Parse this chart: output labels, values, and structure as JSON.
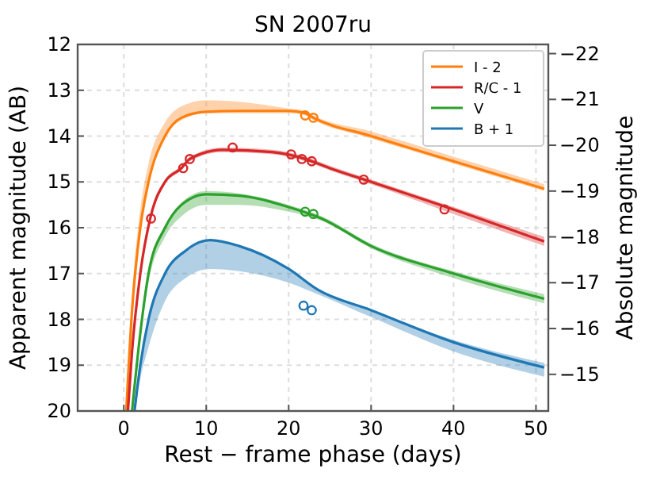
{
  "chart_data": {
    "type": "line",
    "title": "SN 2007ru",
    "xlabel": "Rest − frame phase (days)",
    "ylabel": "Apparent magnitude (AB)",
    "y2label": "Absolute magnitude",
    "xlim": [
      -5.6,
      51.5
    ],
    "xticks": [
      0,
      10,
      20,
      30,
      40,
      50
    ],
    "ylim": [
      20,
      12
    ],
    "yticks": [
      12,
      13,
      14,
      15,
      16,
      17,
      18,
      19,
      20
    ],
    "y2lim": [
      -14.2,
      -22.2
    ],
    "y2ticks": [
      -22,
      -21,
      -20,
      -19,
      -18,
      -17,
      -16,
      -15
    ],
    "grid": true,
    "legend": "top right",
    "line_style": "solid",
    "marker": "none",
    "series": [
      {
        "name": "I - 2",
        "color": "#ff7f0e",
        "x": [
          0.3,
          1,
          2,
          3,
          5,
          7,
          10,
          14,
          20,
          22,
          23,
          30,
          40,
          51
        ],
        "values": [
          20,
          17.8,
          16,
          15,
          14,
          13.6,
          13.47,
          13.45,
          13.45,
          13.5,
          13.6,
          14,
          14.55,
          15.15
        ],
        "lower": [
          20,
          17.8,
          16,
          15,
          14,
          13.65,
          13.5,
          13.5,
          13.5,
          13.55,
          13.65,
          14.05,
          14.6,
          15.2
        ],
        "upper": [
          20,
          17.5,
          15.6,
          14.6,
          13.7,
          13.35,
          13.22,
          13.25,
          13.4,
          13.45,
          13.55,
          13.9,
          14.45,
          15.05
        ]
      },
      {
        "name": "R/C - 1",
        "color": "#d62728",
        "x": [
          0.5,
          1,
          2,
          3.2,
          5,
          7,
          8,
          12,
          18,
          22,
          25,
          30,
          40,
          51
        ],
        "values": [
          20,
          18.7,
          17,
          15.8,
          15,
          14.7,
          14.5,
          14.3,
          14.35,
          14.5,
          14.7,
          15,
          15.6,
          16.3
        ],
        "lower": [
          20,
          18.7,
          17,
          15.85,
          15.05,
          14.75,
          14.55,
          14.35,
          14.4,
          14.55,
          14.75,
          15.05,
          15.7,
          16.4
        ],
        "upper": [
          20,
          18.6,
          16.9,
          15.7,
          14.95,
          14.65,
          14.45,
          14.25,
          14.3,
          14.45,
          14.65,
          14.95,
          15.55,
          16.2
        ]
      },
      {
        "name": "V",
        "color": "#2ca02c",
        "x": [
          1,
          2,
          3,
          5,
          7,
          10,
          14,
          20,
          24,
          30,
          40,
          51
        ],
        "values": [
          20,
          18.3,
          17,
          16,
          15.5,
          15.27,
          15.3,
          15.55,
          15.8,
          16.4,
          17,
          17.55
        ],
        "lower": [
          20,
          18.4,
          17.2,
          16.2,
          15.75,
          15.5,
          15.5,
          15.65,
          15.85,
          16.45,
          17.1,
          17.65
        ],
        "upper": [
          20,
          18.2,
          16.9,
          15.95,
          15.45,
          15.2,
          15.25,
          15.5,
          15.75,
          16.35,
          16.95,
          17.45
        ]
      },
      {
        "name": "B + 1",
        "color": "#1f77b4",
        "x": [
          1.3,
          2,
          3,
          5,
          7.5,
          10.5,
          14,
          20,
          23.5,
          30,
          40,
          51
        ],
        "values": [
          20,
          19,
          18,
          17,
          16.5,
          16.27,
          16.4,
          16.9,
          17.35,
          17.8,
          18.5,
          19.05
        ],
        "lower": [
          20,
          19.3,
          18.6,
          17.6,
          17.1,
          16.9,
          16.95,
          17.2,
          17.45,
          17.95,
          18.7,
          19.25
        ],
        "upper": [
          20,
          19,
          18,
          17,
          16.5,
          16.27,
          16.4,
          16.9,
          17.35,
          17.8,
          18.45,
          18.95
        ]
      },
      {
        "type": "scatter",
        "marker": "circle",
        "color": "#d62728",
        "x": [
          3.3,
          7.2,
          8,
          13.2,
          20.3,
          21.6,
          22.8,
          29.1,
          38.9
        ],
        "values": [
          15.8,
          14.7,
          14.5,
          14.25,
          14.4,
          14.5,
          14.55,
          14.95,
          15.6
        ]
      },
      {
        "type": "scatter",
        "marker": "circle",
        "color": "#ff7f0e",
        "x": [
          22,
          23
        ],
        "values": [
          13.55,
          13.6
        ]
      },
      {
        "type": "scatter",
        "marker": "circle",
        "color": "#2ca02c",
        "x": [
          22,
          23
        ],
        "values": [
          15.65,
          15.7
        ]
      },
      {
        "type": "scatter",
        "marker": "circle",
        "color": "#1f77b4",
        "x": [
          21.8,
          22.8
        ],
        "values": [
          17.7,
          17.8
        ]
      }
    ]
  }
}
